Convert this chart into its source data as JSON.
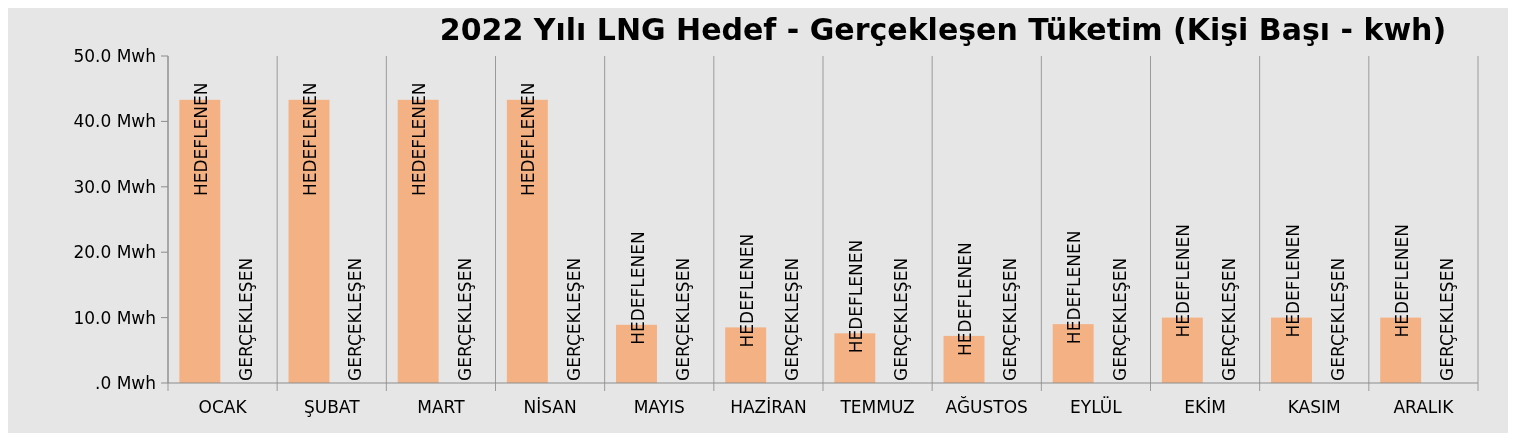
{
  "chart_data": {
    "type": "bar",
    "title": "2022 Yılı LNG Hedef - Gerçekleşen Tüketim  (Kişi Başı - kwh)",
    "categories": [
      "OCAK",
      "ŞUBAT",
      "MART",
      "NİSAN",
      "MAYIS",
      "HAZİRAN",
      "TEMMUZ",
      "AĞUSTOS",
      "EYLÜL",
      "EKİM",
      "KASIM",
      "ARALIK"
    ],
    "series": [
      {
        "name": "HEDEFLENEN",
        "color": "#f4b183",
        "values": [
          43.3,
          43.3,
          43.3,
          43.3,
          8.9,
          8.5,
          7.6,
          7.2,
          9.0,
          10.0,
          10.0,
          10.0
        ]
      },
      {
        "name": "GERÇEKLEŞEN",
        "values": [
          0,
          0,
          0,
          0,
          0,
          0,
          0,
          0,
          0,
          0,
          0,
          0
        ]
      }
    ],
    "ylim": [
      0,
      50
    ],
    "yticks": [
      {
        "value": 0,
        "label": ".0 Mwh"
      },
      {
        "value": 10,
        "label": "10.0 Mwh"
      },
      {
        "value": 20,
        "label": "20.0 Mwh"
      },
      {
        "value": 30,
        "label": "30.0 Mwh"
      },
      {
        "value": 40,
        "label": "40.0 Mwh"
      },
      {
        "value": 50,
        "label": "50.0 Mwh"
      }
    ],
    "grid": "x"
  }
}
